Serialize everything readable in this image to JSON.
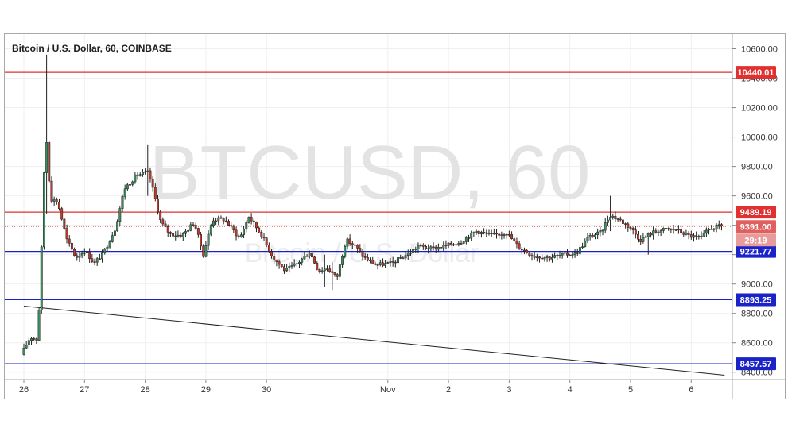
{
  "chart_data": {
    "type": "candlestick",
    "title": "Bitcoin / U.S. Dollar, 60, COINBASE",
    "watermark": "BTCUSD, 60",
    "watermark_sub": "Bitcoin / U.S. Dollar",
    "ylim": [
      8350,
      10700
    ],
    "y_ticks": [
      8400,
      8600,
      8800,
      9000,
      9200,
      9400,
      9600,
      9800,
      10000,
      10200,
      10400,
      10600
    ],
    "y_tick_labels": [
      "8400.00",
      "8600.00",
      "8800.00",
      "9000.00",
      "9200.00",
      "9400.00",
      "9600.00",
      "9800.00",
      "10000.00",
      "10200.00",
      "10400.00",
      "10600.00"
    ],
    "x_tick_labels": [
      "26",
      "27",
      "28",
      "29",
      "30",
      "Nov",
      "2",
      "3",
      "4",
      "5",
      "6"
    ],
    "x_tick_index": [
      0,
      1,
      2,
      3,
      4,
      6,
      7,
      8,
      9,
      10,
      11
    ],
    "x_days": 11.55,
    "colors": {
      "up": "#3d8f60",
      "down": "#c0392b",
      "resistance": "#e03030",
      "support": "#1a23c8",
      "trend": "#222222",
      "grid": "#efefef"
    },
    "horizontal_lines": [
      {
        "value": 10440.01,
        "label": "10440.01",
        "color": "#e03030"
      },
      {
        "value": 9489.19,
        "label": "9489.19",
        "color": "#e03030"
      },
      {
        "value": 9221.77,
        "label": "9221.77",
        "color": "#1a23c8"
      },
      {
        "value": 8893.25,
        "label": "8893.25",
        "color": "#1a23c8"
      },
      {
        "value": 8457.57,
        "label": "8457.57",
        "color": "#1a23c8"
      }
    ],
    "trendline": {
      "from": [
        0,
        8850
      ],
      "to": [
        11.55,
        8380
      ]
    },
    "last_price": {
      "value": 9391.0,
      "label": "9391.00",
      "countdown": "29:19",
      "color": "#e06060"
    },
    "price_path": [
      [
        0.0,
        8520
      ],
      [
        0.15,
        8640
      ],
      [
        0.27,
        8620
      ],
      [
        0.33,
        9200
      ],
      [
        0.4,
        10070
      ],
      [
        0.48,
        9580
      ],
      [
        0.6,
        9560
      ],
      [
        0.75,
        9300
      ],
      [
        0.9,
        9180
      ],
      [
        1.05,
        9230
      ],
      [
        1.2,
        9140
      ],
      [
        1.35,
        9210
      ],
      [
        1.55,
        9380
      ],
      [
        1.7,
        9650
      ],
      [
        1.9,
        9740
      ],
      [
        2.1,
        9760
      ],
      [
        2.3,
        9420
      ],
      [
        2.45,
        9340
      ],
      [
        2.65,
        9330
      ],
      [
        2.85,
        9420
      ],
      [
        3.0,
        9200
      ],
      [
        3.15,
        9440
      ],
      [
        3.35,
        9440
      ],
      [
        3.6,
        9310
      ],
      [
        3.75,
        9460
      ],
      [
        3.95,
        9340
      ],
      [
        4.15,
        9180
      ],
      [
        4.35,
        9090
      ],
      [
        4.55,
        9140
      ],
      [
        4.75,
        9220
      ],
      [
        4.9,
        9090
      ],
      [
        5.05,
        9110
      ],
      [
        5.2,
        9040
      ],
      [
        5.35,
        9300
      ],
      [
        5.5,
        9260
      ],
      [
        5.65,
        9180
      ],
      [
        5.85,
        9130
      ],
      [
        6.1,
        9140
      ],
      [
        6.35,
        9200
      ],
      [
        6.55,
        9260
      ],
      [
        6.75,
        9240
      ],
      [
        7.0,
        9260
      ],
      [
        7.25,
        9290
      ],
      [
        7.5,
        9360
      ],
      [
        7.75,
        9330
      ],
      [
        8.0,
        9350
      ],
      [
        8.2,
        9250
      ],
      [
        8.45,
        9190
      ],
      [
        8.7,
        9180
      ],
      [
        8.95,
        9200
      ],
      [
        9.15,
        9210
      ],
      [
        9.35,
        9320
      ],
      [
        9.55,
        9350
      ],
      [
        9.7,
        9470
      ],
      [
        9.85,
        9440
      ],
      [
        10.05,
        9380
      ],
      [
        10.2,
        9300
      ],
      [
        10.4,
        9350
      ],
      [
        10.6,
        9370
      ],
      [
        10.8,
        9370
      ],
      [
        11.0,
        9330
      ],
      [
        11.2,
        9310
      ],
      [
        11.35,
        9380
      ],
      [
        11.5,
        9391
      ]
    ],
    "spikes": [
      {
        "t": 0.38,
        "high": 10560,
        "low": 9480
      },
      {
        "t": 2.05,
        "high": 9950,
        "low": 9600
      },
      {
        "t": 4.95,
        "high": 9200,
        "low": 8980
      },
      {
        "t": 5.1,
        "high": 9150,
        "low": 8960
      },
      {
        "t": 9.65,
        "high": 9600,
        "low": 9360
      },
      {
        "t": 10.3,
        "high": 9280,
        "low": 9200
      }
    ]
  }
}
